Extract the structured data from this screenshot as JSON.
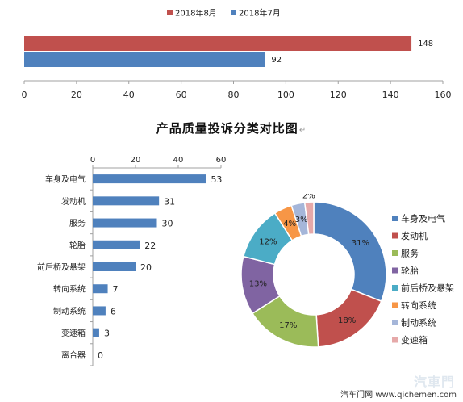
{
  "title": "产品质量投诉分类对比图",
  "title_mark": "↵",
  "footer": "汽车门网 www.qichemen.com",
  "watermark": "汽車門",
  "chart_data": [
    {
      "type": "bar",
      "orientation": "horizontal",
      "series": [
        {
          "name": "2018年8月",
          "values": [
            148
          ],
          "color": "#c0504d"
        },
        {
          "name": "2018年7月",
          "values": [
            92
          ],
          "color": "#4f81bd"
        }
      ],
      "xlim": [
        0,
        160
      ],
      "xticks": [
        0,
        20,
        40,
        60,
        80,
        100,
        120,
        140,
        160
      ],
      "legend": "top"
    },
    {
      "type": "bar",
      "orientation": "horizontal",
      "categories": [
        "车身及电气",
        "发动机",
        "服务",
        "轮胎",
        "前后桥及悬架",
        "转向系统",
        "制动系统",
        "变速箱",
        "离合器"
      ],
      "values": [
        53,
        31,
        30,
        22,
        20,
        7,
        6,
        3,
        0
      ],
      "color": "#4f81bd",
      "xlim": [
        0,
        60
      ],
      "xticks": [
        0,
        20,
        40,
        60
      ],
      "xaxis": "top"
    },
    {
      "type": "pie",
      "donut": true,
      "labels": [
        "车身及电气",
        "发动机",
        "服务",
        "轮胎",
        "前后桥及悬架",
        "转向系统",
        "制动系统",
        "变速箱"
      ],
      "values": [
        31,
        18,
        17,
        13,
        12,
        4,
        3,
        2
      ],
      "value_labels": [
        "31%",
        "18%",
        "17%",
        "13%",
        "12%",
        "4%",
        "3%",
        "2%"
      ],
      "colors": [
        "#4f81bd",
        "#c0504d",
        "#9bbb59",
        "#8064a2",
        "#4bacc6",
        "#f79646",
        "#a5b6d9",
        "#e6a9a9"
      ],
      "legend": "right"
    }
  ]
}
